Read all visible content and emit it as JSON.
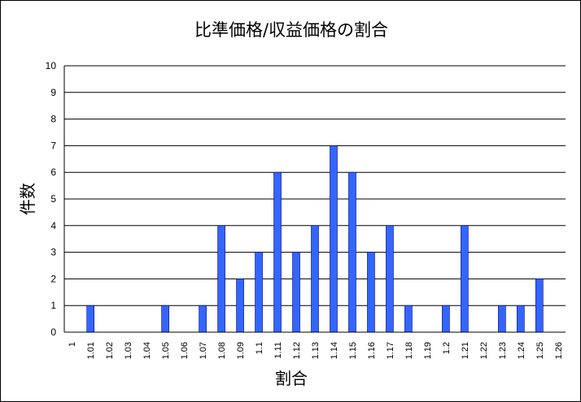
{
  "chart_data": {
    "type": "bar",
    "title": "比準価格/収益価格の割合",
    "xlabel": "割合",
    "ylabel": "件数",
    "ylim": [
      0,
      10
    ],
    "yticks": [
      0,
      1,
      2,
      3,
      4,
      5,
      6,
      7,
      8,
      9,
      10
    ],
    "grid": true,
    "legend": "none",
    "bar_color": "#3366FF",
    "categories": [
      "1",
      "1.01",
      "1.02",
      "1.03",
      "1.04",
      "1.05",
      "1.06",
      "1.07",
      "1.08",
      "1.09",
      "1.1",
      "1.11",
      "1.12",
      "1.13",
      "1.14",
      "1.15",
      "1.16",
      "1.17",
      "1.18",
      "1.19",
      "1.2",
      "1.21",
      "1.22",
      "1.23",
      "1.24",
      "1.25",
      "1.26"
    ],
    "values": [
      0,
      1,
      0,
      0,
      0,
      1,
      0,
      1,
      4,
      2,
      3,
      6,
      3,
      4,
      7,
      6,
      3,
      4,
      1,
      0,
      1,
      4,
      0,
      1,
      1,
      2,
      0
    ]
  }
}
